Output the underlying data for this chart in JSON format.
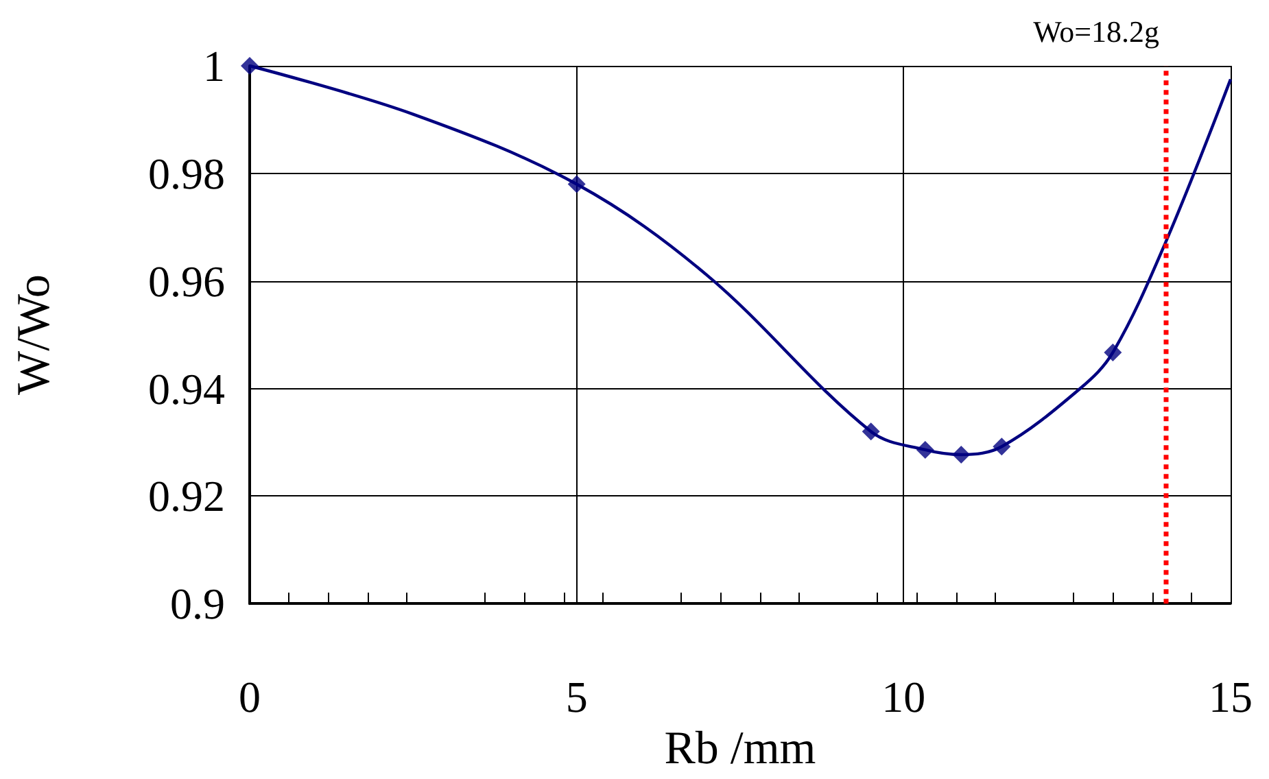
{
  "chart_data": {
    "type": "line",
    "xlabel": "Rb /mm",
    "ylabel": "W/Wo",
    "series": [
      {
        "color": "#000080",
        "marker": "none",
        "x": [
          0,
          2.5,
          5,
          7,
          9.5,
          10.33,
          10.88,
          11.5,
          12.7,
          13.2,
          14,
          15
        ],
        "values": [
          1,
          0.991,
          0.978,
          0.961,
          0.932,
          0.9286,
          0.9277,
          0.9292,
          0.94,
          0.9467,
          0.967,
          0.9975
        ]
      },
      {
        "type": "scatter",
        "color": "#000080",
        "marker": "diamond",
        "x": [
          0,
          5,
          9.5,
          10.33,
          10.88,
          11.5,
          13.2
        ],
        "values": [
          1,
          0.978,
          0.932,
          0.9286,
          0.9277,
          0.9292,
          0.9467
        ]
      }
    ],
    "xlim": [
      0,
      15
    ],
    "xticks": [
      0,
      5,
      10,
      15
    ],
    "ylim": [
      0.9,
      1
    ],
    "yticks": [
      0.9,
      0.92,
      0.94,
      0.96,
      0.98,
      1
    ],
    "grid": true,
    "annotations": [
      "Wo=18.2g"
    ],
    "ref_lines": [
      {
        "axis": "x",
        "value": 14,
        "color": "#ff0000",
        "line_style": "dotted"
      }
    ]
  }
}
